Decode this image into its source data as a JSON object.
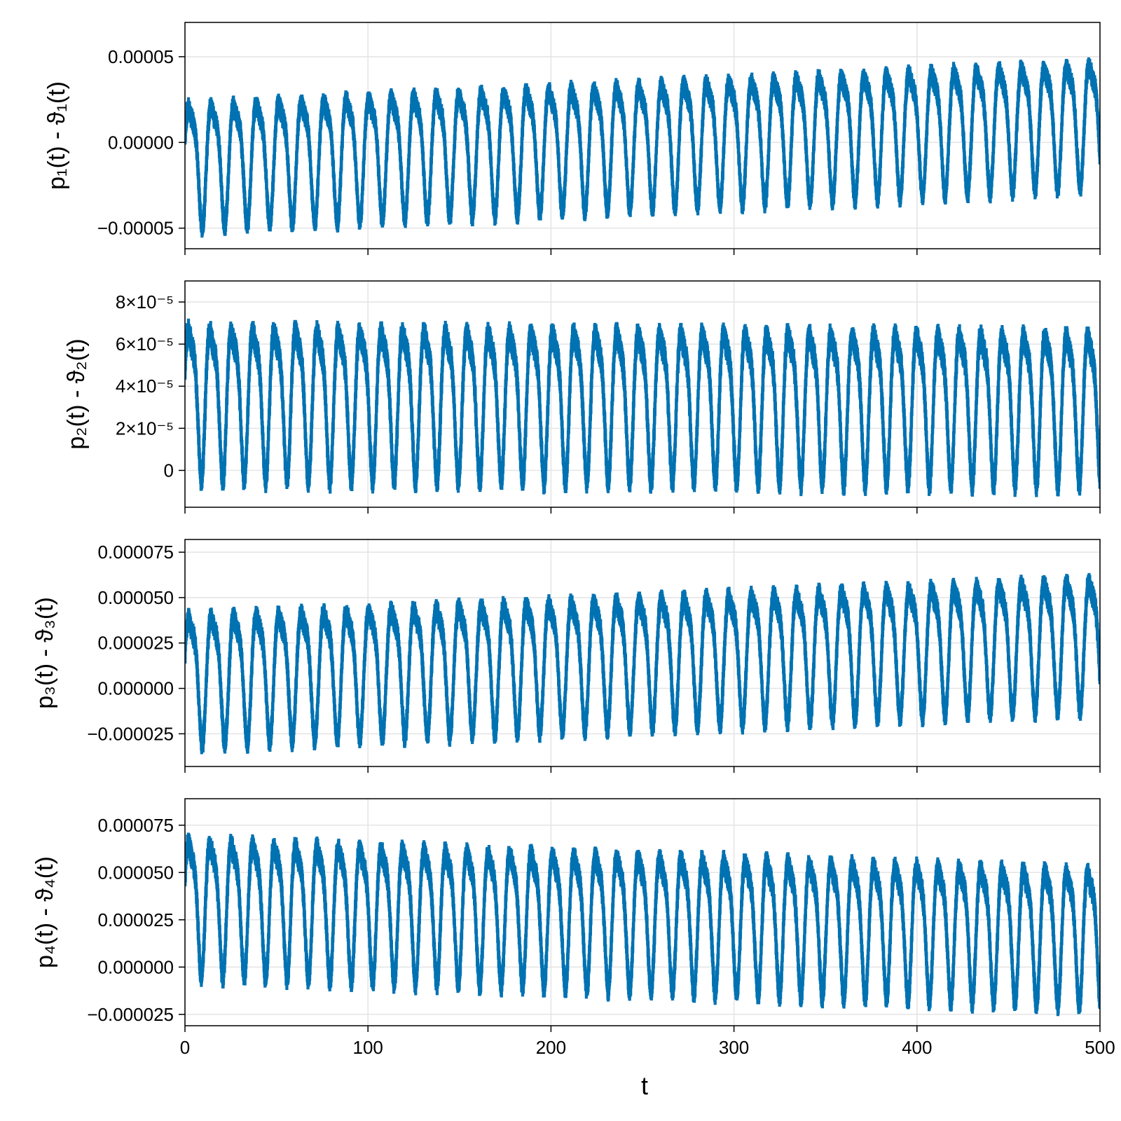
{
  "figure": {
    "xlabel": "t",
    "series_color": "#0072b2"
  },
  "chart_data": [
    {
      "type": "line",
      "ylabel": "p₁(t) - ϑ₁(t)",
      "xlim": [
        0,
        500
      ],
      "ylim": [
        -6.2e-05,
        7e-05
      ],
      "xticks": [
        0,
        100,
        200,
        300,
        400,
        500
      ],
      "xtick_labels": [
        "",
        "",
        "",
        "",
        "",
        ""
      ],
      "yticks": [
        -5e-05,
        0.0,
        5e-05
      ],
      "ytick_labels": [
        "−0.00005",
        "0.00000",
        "0.00005"
      ],
      "grid": true,
      "signal": {
        "period": 12.3,
        "min_start": -5.4e-05,
        "min_end": -3e-05,
        "max_start": 3.7e-05,
        "max_end": 6.2e-05,
        "noise": 3e-06
      }
    },
    {
      "type": "line",
      "ylabel": "p₂(t) - ϑ₂(t)",
      "xlim": [
        0,
        500
      ],
      "ylim": [
        -1.75e-05,
        9e-05
      ],
      "xticks": [
        0,
        100,
        200,
        300,
        400,
        500
      ],
      "xtick_labels": [
        "",
        "",
        "",
        "",
        "",
        ""
      ],
      "yticks": [
        0.0,
        2e-05,
        4e-05,
        6e-05,
        8e-05
      ],
      "ytick_labels": [
        "0",
        "2×10⁻⁵",
        "4×10⁻⁵",
        "6×10⁻⁵",
        "8×10⁻⁵"
      ],
      "grid": true,
      "signal": {
        "period": 11.7,
        "min_start": -8e-06,
        "min_end": -1e-05,
        "max_start": 8.3e-05,
        "max_end": 8e-05,
        "noise": 3e-06
      }
    },
    {
      "type": "line",
      "ylabel": "p₃(t) - ϑ₃(t)",
      "xlim": [
        0,
        500
      ],
      "ylim": [
        -4.3e-05,
        8.2e-05
      ],
      "xticks": [
        0,
        100,
        200,
        300,
        400,
        500
      ],
      "xtick_labels": [
        "",
        "",
        "",
        "",
        "",
        ""
      ],
      "yticks": [
        -2.5e-05,
        0.0,
        2.5e-05,
        5e-05,
        7.5e-05
      ],
      "ytick_labels": [
        "−0.000025",
        "0.000000",
        "0.000025",
        "0.000050",
        "0.000075"
      ],
      "grid": true,
      "signal": {
        "period": 12.3,
        "min_start": -3.5e-05,
        "min_end": -1.5e-05,
        "max_start": 5.5e-05,
        "max_end": 7.5e-05,
        "noise": 3e-06
      }
    },
    {
      "type": "line",
      "ylabel": "p₄(t) - ϑ₄(t)",
      "xlim": [
        0,
        500
      ],
      "ylim": [
        -3.1e-05,
        8.9e-05
      ],
      "xticks": [
        0,
        100,
        200,
        300,
        400,
        500
      ],
      "xtick_labels": [
        "0",
        "100",
        "200",
        "300",
        "400",
        "500"
      ],
      "yticks": [
        -2.5e-05,
        0.0,
        2.5e-05,
        5e-05,
        7.5e-05
      ],
      "ytick_labels": [
        "−0.000025",
        "0.000000",
        "0.000025",
        "0.000050",
        "0.000075"
      ],
      "grid": true,
      "signal": {
        "period": 11.7,
        "min_start": -8e-06,
        "min_end": -2.4e-05,
        "max_start": 8.2e-05,
        "max_end": 6.6e-05,
        "noise": 3e-06
      }
    }
  ]
}
